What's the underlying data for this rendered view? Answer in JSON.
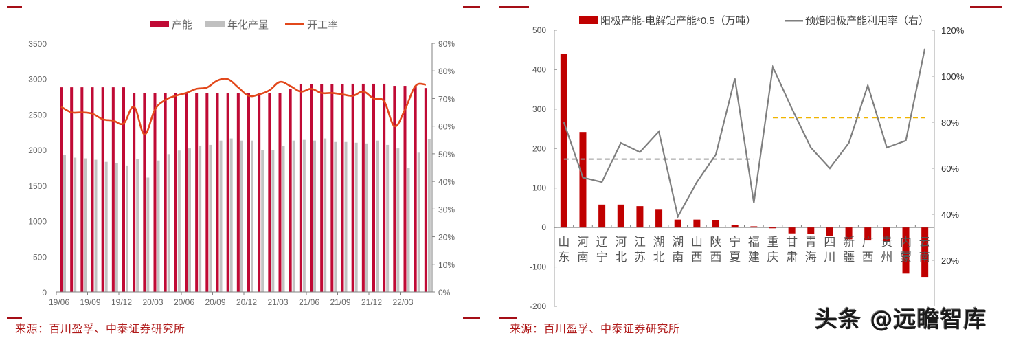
{
  "left_chart": {
    "legend": [
      {
        "label": "产能",
        "color": "#c00a35",
        "kind": "bar"
      },
      {
        "label": "年化产量",
        "color": "#c0c0c0",
        "kind": "bar"
      },
      {
        "label": "开工率",
        "color": "#e2481b",
        "kind": "line"
      }
    ],
    "source": "来源：百川盈孚、中泰证券研究所",
    "left_axis_ticks": [
      "0",
      "500",
      "1000",
      "1500",
      "2000",
      "2500",
      "3000",
      "3500"
    ],
    "right_axis_ticks": [
      "0%",
      "10%",
      "20%",
      "30%",
      "40%",
      "50%",
      "60%",
      "70%",
      "80%",
      "90%"
    ],
    "x_tick_labels": [
      "19/06",
      "19/09",
      "19/12",
      "20/03",
      "20/06",
      "20/09",
      "20/12",
      "21/03",
      "21/06",
      "21/09",
      "21/12",
      "22/03"
    ]
  },
  "right_chart": {
    "legend": [
      {
        "label": "阳极产能-电解铝产能*0.5（万吨）",
        "color": "#c00000",
        "kind": "bar"
      },
      {
        "label": "预焙阳极产能利用率（右）",
        "color": "#7f7f7f",
        "kind": "line"
      }
    ],
    "source": "来源：百川盈孚、中泰证券研究所",
    "left_axis_ticks": [
      "-200",
      "-100",
      "0",
      "100",
      "200",
      "300",
      "400",
      "500"
    ],
    "right_axis_ticks": [
      "20%",
      "40%",
      "60%",
      "80%",
      "100%",
      "120%"
    ]
  },
  "watermark": "头条 @远瞻智库",
  "chart_data": [
    {
      "type": "bar",
      "title": "",
      "xlabel": "",
      "ylabel": "",
      "y2label": "",
      "ylim": [
        0,
        3500
      ],
      "y2lim": [
        0,
        90
      ],
      "legend_position": "top",
      "grid": false,
      "categories": [
        "19/06",
        "19/07",
        "19/08",
        "19/09",
        "19/10",
        "19/11",
        "19/12",
        "20/01",
        "20/02",
        "20/03",
        "20/04",
        "20/05",
        "20/06",
        "20/07",
        "20/08",
        "20/09",
        "20/10",
        "20/11",
        "20/12",
        "21/01",
        "21/02",
        "21/03",
        "21/04",
        "21/05",
        "21/06",
        "21/07",
        "21/08",
        "21/09",
        "21/10",
        "21/11",
        "21/12",
        "22/01",
        "22/02",
        "22/03",
        "22/04",
        "22/05"
      ],
      "series": [
        {
          "name": "产能",
          "type": "bar",
          "axis": "left",
          "values": [
            2880,
            2880,
            2880,
            2880,
            2880,
            2880,
            2880,
            2800,
            2800,
            2800,
            2800,
            2800,
            2800,
            2800,
            2800,
            2800,
            2800,
            2800,
            2800,
            2800,
            2800,
            2800,
            2860,
            2920,
            2920,
            2920,
            2920,
            2920,
            2930,
            2930,
            2930,
            2930,
            2900,
            2900,
            2900,
            2870
          ]
        },
        {
          "name": "年化产量",
          "type": "bar",
          "axis": "left",
          "values": [
            1930,
            1890,
            1880,
            1860,
            1830,
            1810,
            1780,
            1870,
            1610,
            1850,
            1940,
            1990,
            2020,
            2060,
            2070,
            2130,
            2160,
            2130,
            2130,
            2000,
            2000,
            2050,
            2130,
            2140,
            2130,
            2160,
            2110,
            2110,
            2100,
            2090,
            2130,
            2070,
            2020,
            1750,
            1960,
            2150
          ]
        },
        {
          "name": "开工率",
          "type": "line",
          "axis": "right",
          "unit": "%",
          "values": [
            67,
            65,
            65,
            64.5,
            62.5,
            62,
            61,
            67,
            57,
            66,
            69.5,
            71,
            72,
            73.5,
            74,
            76.5,
            77,
            74,
            71,
            71.5,
            73,
            76,
            74.5,
            72.5,
            73.5,
            72,
            72,
            71.5,
            71,
            72.5,
            70,
            69,
            60,
            66,
            74.5,
            75
          ]
        }
      ]
    },
    {
      "type": "bar",
      "title": "",
      "xlabel": "",
      "ylabel": "",
      "y2label": "",
      "ylim": [
        -200,
        500
      ],
      "y2lim": [
        0,
        120
      ],
      "legend_position": "top",
      "grid": false,
      "categories": [
        "山东",
        "河南",
        "辽宁",
        "河北",
        "江苏",
        "湖北",
        "湖南",
        "山西",
        "陕西",
        "宁夏",
        "福建",
        "重庆",
        "甘肃",
        "青海",
        "四川",
        "新疆",
        "广西",
        "贵州",
        "内蒙",
        "云南"
      ],
      "series": [
        {
          "name": "阳极产能-电解铝产能*0.5（万吨）",
          "type": "bar",
          "axis": "left",
          "values": [
            440,
            242,
            58,
            58,
            54,
            45,
            20,
            20,
            18,
            6,
            3,
            -2,
            -15,
            -16,
            -22,
            -30,
            -33,
            -36,
            -117,
            -127
          ]
        },
        {
          "name": "预焙阳极产能利用率（右）",
          "type": "line",
          "axis": "right",
          "unit": "%",
          "values": [
            80,
            56,
            54,
            71,
            67,
            76,
            39,
            54,
            66,
            99,
            45,
            104,
            86,
            69,
            60,
            71,
            96,
            69,
            72,
            112
          ]
        }
      ],
      "reference_lines": [
        {
          "style": "dashed",
          "color": "#999999",
          "axis": "right",
          "value": 64,
          "from": "山东",
          "to": "福建"
        },
        {
          "style": "dashed",
          "color": "#f0b400",
          "axis": "right",
          "value": 82,
          "from": "重庆",
          "to": "云南"
        }
      ]
    }
  ]
}
